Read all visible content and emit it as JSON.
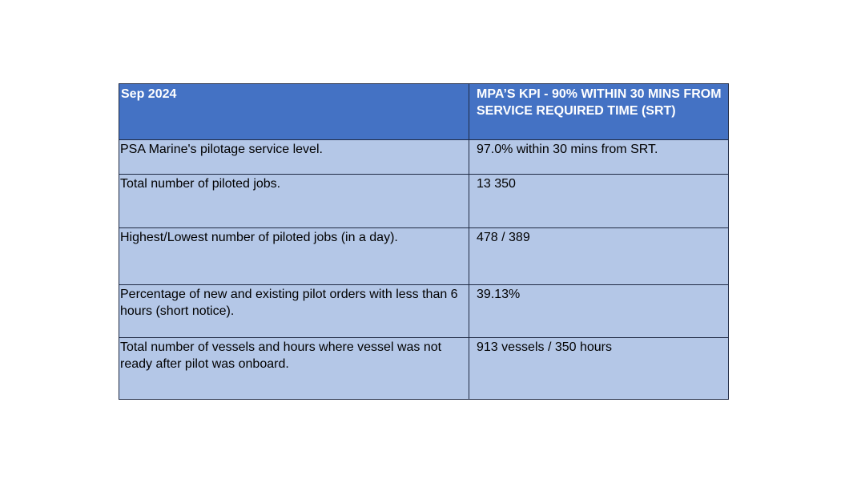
{
  "table": {
    "header": {
      "col1": "Sep 2024",
      "col2": "MPA’S KPI - 90% WITHIN 30 MINS FROM SERVICE REQUIRED TIME (SRT)"
    },
    "rows": [
      {
        "label": "PSA Marine's pilotage service level.",
        "value": "97.0% within 30 mins from SRT."
      },
      {
        "label": "Total number of piloted jobs.",
        "value": "13 350"
      },
      {
        "label": "Highest/Lowest number of piloted jobs (in a day).",
        "value": "478 / 389"
      },
      {
        "label": "Percentage of new and existing pilot orders with less than 6 hours (short notice).",
        "value": "39.13%"
      },
      {
        "label": "Total number of vessels and hours where vessel was not ready after pilot was onboard.",
        "value": "913 vessels / 350 hours"
      }
    ]
  },
  "colors": {
    "header_bg": "#4472c4",
    "body_bg": "#b4c7e7",
    "border": "#1f2a44"
  }
}
